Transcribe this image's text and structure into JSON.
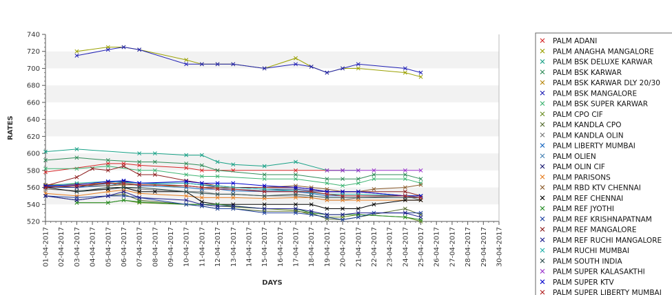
{
  "chart_data": {
    "type": "line",
    "xlabel": "DAYS",
    "ylabel": "RATES",
    "ylim": [
      520,
      740
    ],
    "y_ticks": [
      520,
      540,
      560,
      580,
      600,
      620,
      640,
      660,
      680,
      700,
      720,
      740
    ],
    "grid": "alternating horizontal bands",
    "legend_position": "right",
    "x": [
      "01-04-2017",
      "02-04-2017",
      "03-04-2017",
      "04-04-2017",
      "05-04-2017",
      "06-04-2017",
      "07-04-2017",
      "08-04-2017",
      "09-04-2017",
      "10-04-2017",
      "11-04-2017",
      "12-04-2017",
      "13-04-2017",
      "14-04-2017",
      "15-04-2017",
      "16-04-2017",
      "17-04-2017",
      "18-04-2017",
      "19-04-2017",
      "20-04-2017",
      "21-04-2017",
      "22-04-2017",
      "23-04-2017",
      "24-04-2017",
      "25-04-2017",
      "26-04-2017",
      "27-04-2017",
      "28-04-2017",
      "29-04-2017",
      "30-04-2017"
    ],
    "series": [
      {
        "name": "PALM ADANI",
        "color": "#d62728",
        "values": [
          578,
          null,
          null,
          null,
          588,
          588,
          586,
          null,
          null,
          583,
          580,
          580,
          580,
          null,
          null,
          null,
          580,
          null,
          580,
          580,
          null,
          null,
          null,
          null,
          null,
          null,
          null,
          null,
          null,
          null
        ]
      },
      {
        "name": "PALM ANAGHA MANGALORE",
        "color": "#9aa000",
        "values": [
          null,
          null,
          720,
          null,
          725,
          725,
          722,
          null,
          null,
          710,
          705,
          705,
          705,
          null,
          700,
          null,
          712,
          702,
          695,
          700,
          700,
          null,
          null,
          695,
          690,
          null,
          null,
          null,
          null,
          null
        ]
      },
      {
        "name": "PALM BSK DELUXE KARWAR",
        "color": "#16a085",
        "values": [
          602,
          null,
          605,
          null,
          null,
          null,
          600,
          600,
          null,
          598,
          598,
          590,
          587,
          null,
          585,
          null,
          590,
          null,
          580,
          580,
          580,
          null,
          null,
          null,
          null,
          null,
          null,
          null,
          null,
          null
        ]
      },
      {
        "name": "PALM BSK KARWAR",
        "color": "#2e8b57",
        "values": [
          592,
          null,
          595,
          null,
          592,
          null,
          590,
          590,
          null,
          588,
          586,
          580,
          null,
          null,
          575,
          null,
          575,
          null,
          570,
          570,
          570,
          575,
          null,
          575,
          570,
          null,
          null,
          null,
          null,
          null
        ]
      },
      {
        "name": "PALM BSK KARWAR DLY 20/30",
        "color": "#b8860b",
        "values": [
          563,
          null,
          564,
          null,
          565,
          563,
          null,
          563,
          null,
          560,
          null,
          null,
          null,
          null,
          null,
          null,
          null,
          null,
          null,
          null,
          null,
          null,
          null,
          null,
          null,
          null,
          null,
          null,
          null,
          null
        ]
      },
      {
        "name": "PALM BSK MANGALORE",
        "color": "#1f1fb4",
        "values": [
          null,
          null,
          715,
          null,
          722,
          725,
          722,
          null,
          null,
          705,
          705,
          705,
          705,
          null,
          700,
          null,
          705,
          702,
          695,
          700,
          705,
          null,
          null,
          700,
          695,
          null,
          null,
          null,
          null,
          null
        ]
      },
      {
        "name": "PALM BSK SUPER KARWAR",
        "color": "#3cb371",
        "values": [
          582,
          null,
          582,
          null,
          585,
          null,
          580,
          580,
          null,
          575,
          573,
          573,
          null,
          null,
          570,
          null,
          570,
          null,
          565,
          562,
          565,
          570,
          null,
          570,
          565,
          null,
          null,
          null,
          null,
          null
        ]
      },
      {
        "name": "PALM CPO CIF",
        "color": "#6b8e23",
        "values": [
          null,
          null,
          542,
          null,
          542,
          545,
          542,
          null,
          null,
          540,
          540,
          538,
          537,
          null,
          535,
          null,
          533,
          528,
          525,
          525,
          528,
          null,
          null,
          525,
          520,
          null,
          null,
          null,
          null,
          null
        ]
      },
      {
        "name": "PALM KANDLA CPO",
        "color": "#556b2f",
        "values": [
          550,
          null,
          545,
          null,
          550,
          552,
          545,
          null,
          null,
          540,
          538,
          535,
          535,
          null,
          532,
          null,
          532,
          530,
          523,
          522,
          525,
          null,
          null,
          535,
          528,
          null,
          null,
          null,
          null,
          null
        ]
      },
      {
        "name": "PALM KANDLA OLIN",
        "color": "#777777",
        "values": [
          558,
          null,
          556,
          null,
          558,
          560,
          558,
          null,
          null,
          555,
          555,
          552,
          552,
          null,
          550,
          null,
          550,
          548,
          545,
          545,
          548,
          null,
          null,
          550,
          545,
          null,
          null,
          null,
          null,
          null
        ]
      },
      {
        "name": "PALM LIBERTY MUMBAI",
        "color": "#1565c0",
        "values": [
          560,
          null,
          560,
          null,
          562,
          565,
          562,
          null,
          null,
          560,
          558,
          558,
          556,
          null,
          555,
          null,
          555,
          553,
          550,
          550,
          550,
          null,
          null,
          550,
          550,
          null,
          null,
          null,
          null,
          null
        ]
      },
      {
        "name": "PALM OLIEN",
        "color": "#4682b4",
        "values": [
          561,
          null,
          562,
          null,
          564,
          566,
          565,
          null,
          null,
          562,
          560,
          560,
          558,
          null,
          556,
          null,
          556,
          555,
          552,
          550,
          550,
          null,
          null,
          550,
          548,
          null,
          null,
          null,
          null,
          null
        ]
      },
      {
        "name": "PALM OLIN CIF",
        "color": "#191970",
        "values": [
          561,
          null,
          560,
          null,
          566,
          567,
          565,
          null,
          null,
          565,
          563,
          560,
          560,
          null,
          558,
          null,
          558,
          556,
          555,
          555,
          555,
          null,
          null,
          550,
          550,
          null,
          null,
          null,
          null,
          null
        ]
      },
      {
        "name": "PALM PARISONS",
        "color": "#e67e22",
        "values": [
          553,
          null,
          550,
          null,
          555,
          557,
          553,
          null,
          null,
          550,
          548,
          548,
          548,
          null,
          547,
          null,
          548,
          548,
          545,
          545,
          545,
          null,
          null,
          545,
          545,
          null,
          null,
          null,
          null,
          null
        ]
      },
      {
        "name": "PALM RBD KTV CHENNAI",
        "color": "#8b5a2b",
        "values": [
          560,
          null,
          562,
          null,
          562,
          563,
          563,
          null,
          null,
          562,
          560,
          560,
          560,
          null,
          560,
          null,
          562,
          560,
          558,
          555,
          555,
          558,
          null,
          560,
          563,
          null,
          null,
          null,
          null,
          null
        ]
      },
      {
        "name": "PALM REF CHENNAI",
        "color": "#000000",
        "values": [
          560,
          null,
          555,
          null,
          558,
          560,
          555,
          555,
          null,
          555,
          543,
          540,
          540,
          null,
          540,
          null,
          540,
          540,
          535,
          535,
          535,
          540,
          null,
          545,
          545,
          null,
          null,
          null,
          null,
          null
        ]
      },
      {
        "name": "PALM REF JYOTHI",
        "color": "#228b22",
        "values": [
          null,
          null,
          542,
          null,
          542,
          545,
          543,
          null,
          null,
          540,
          540,
          540,
          null,
          null,
          535,
          null,
          535,
          530,
          528,
          528,
          528,
          null,
          null,
          525,
          522,
          null,
          null,
          null,
          null,
          null
        ]
      },
      {
        "name": "PALM REF KRISHNAPATNAM",
        "color": "#1e3fa0",
        "values": [
          550,
          null,
          548,
          null,
          550,
          550,
          548,
          null,
          null,
          540,
          538,
          535,
          535,
          null,
          530,
          null,
          530,
          528,
          525,
          522,
          525,
          530,
          null,
          530,
          530,
          null,
          null,
          null,
          null,
          null
        ]
      },
      {
        "name": "PALM REF MANGALORE",
        "color": "#8b1a1a",
        "values": [
          562,
          null,
          572,
          582,
          580,
          585,
          575,
          575,
          null,
          568,
          565,
          562,
          560,
          null,
          560,
          null,
          560,
          558,
          555,
          555,
          555,
          null,
          null,
          555,
          550,
          null,
          null,
          null,
          null,
          null
        ]
      },
      {
        "name": "PALM REF RUCHI MANGALORE",
        "color": "#1a1a8b",
        "values": [
          550,
          null,
          545,
          null,
          550,
          555,
          548,
          null,
          null,
          545,
          540,
          538,
          538,
          null,
          535,
          null,
          535,
          532,
          528,
          528,
          530,
          null,
          null,
          530,
          525,
          null,
          null,
          null,
          null,
          null
        ]
      },
      {
        "name": "PALM RUCHI MUMBAI",
        "color": "#20b2aa",
        "values": [
          562,
          null,
          565,
          null,
          567,
          566,
          565,
          null,
          null,
          565,
          563,
          562,
          560,
          null,
          558,
          null,
          556,
          554,
          552,
          552,
          552,
          null,
          null,
          550,
          550,
          null,
          null,
          null,
          null,
          null
        ]
      },
      {
        "name": "PALM SOUTH INDIA",
        "color": "#2f4f4f",
        "values": [
          null,
          null,
          555,
          null,
          560,
          560,
          560,
          null,
          null,
          555,
          553,
          552,
          552,
          null,
          550,
          null,
          552,
          550,
          548,
          548,
          548,
          null,
          null,
          548,
          548,
          null,
          null,
          null,
          null,
          null
        ]
      },
      {
        "name": "PALM SUPER KALASAKTHI",
        "color": "#9932cc",
        "values": [
          null,
          null,
          null,
          null,
          null,
          null,
          null,
          null,
          null,
          null,
          null,
          null,
          null,
          null,
          null,
          null,
          null,
          null,
          580,
          580,
          580,
          580,
          null,
          580,
          580,
          null,
          null,
          null,
          null,
          null
        ]
      },
      {
        "name": "PALM SUPER KTV",
        "color": "#0000cd",
        "values": [
          562,
          null,
          563,
          null,
          567,
          568,
          565,
          null,
          null,
          567,
          565,
          565,
          565,
          null,
          562,
          null,
          560,
          558,
          555,
          555,
          555,
          null,
          null,
          550,
          550,
          null,
          null,
          null,
          null,
          null
        ]
      },
      {
        "name": "PALM SUPER LIBERTY MUMBAI",
        "color": "#b22222",
        "values": [
          560,
          null,
          562,
          null,
          565,
          565,
          563,
          null,
          null,
          562,
          560,
          558,
          558,
          null,
          555,
          null,
          555,
          555,
          552,
          550,
          550,
          null,
          null,
          550,
          548,
          null,
          null,
          null,
          null,
          null
        ]
      }
    ]
  }
}
